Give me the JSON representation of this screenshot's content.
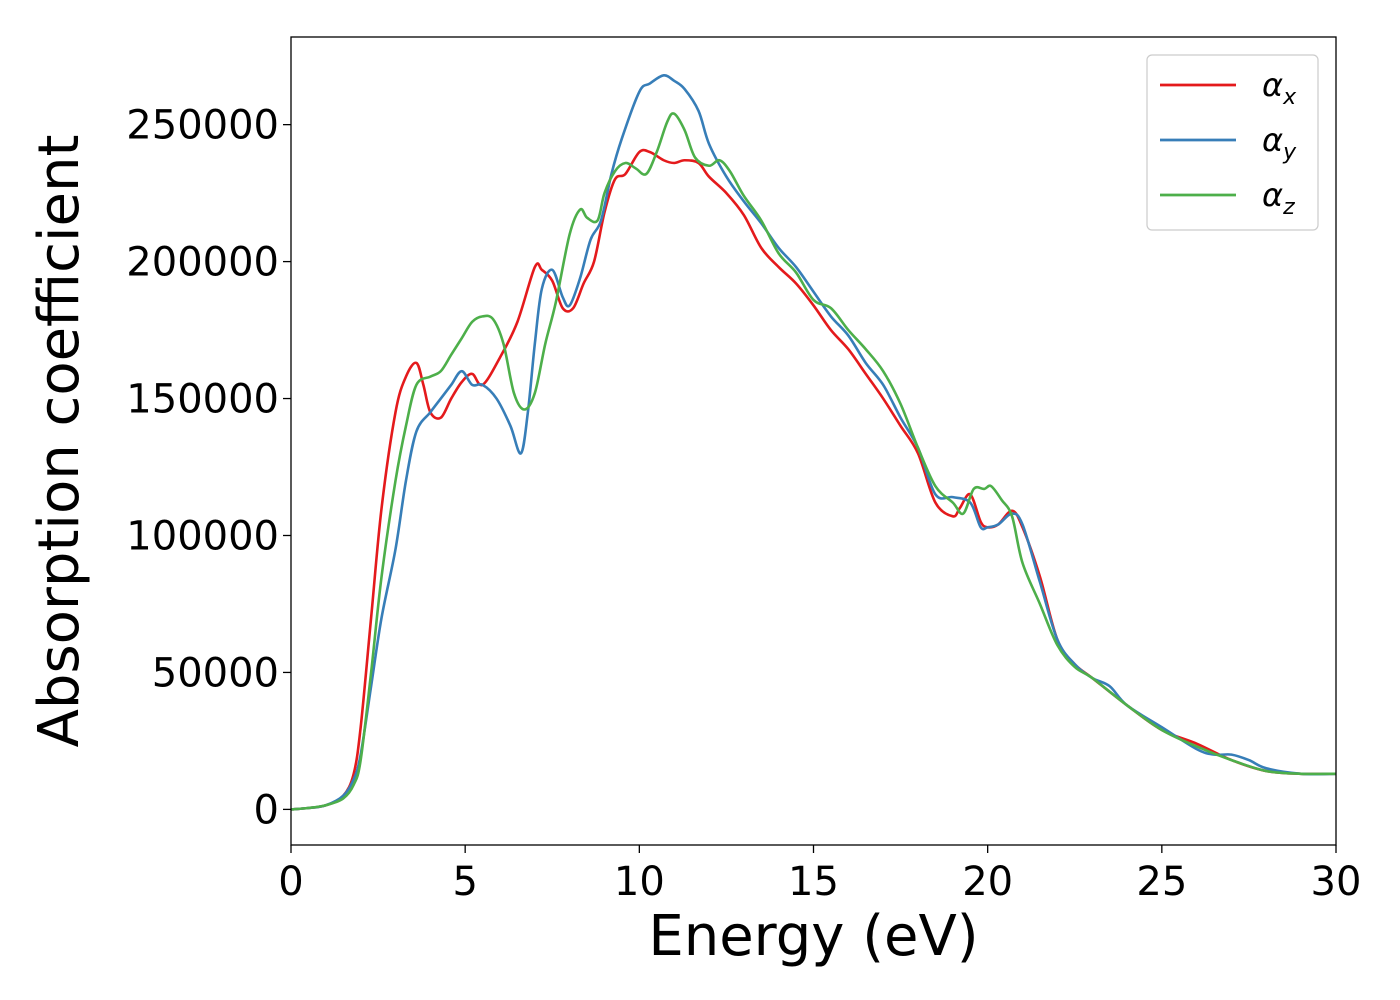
{
  "chart_data": {
    "type": "line",
    "xlabel": "Energy (eV)",
    "ylabel": "Absorption coefficient",
    "xlim": [
      0,
      30
    ],
    "ylim": [
      -13000,
      282000
    ],
    "x_ticks": [
      0,
      5,
      10,
      15,
      20,
      25,
      30
    ],
    "y_ticks": [
      0,
      50000,
      100000,
      150000,
      200000,
      250000
    ],
    "grid": false,
    "legend_position": "top-right",
    "series": [
      {
        "name": "α",
        "name_subscript": "x",
        "color": "#e41a1c",
        "x": [
          0,
          0.5,
          1.0,
          1.5,
          1.8,
          2.0,
          2.3,
          2.6,
          3.0,
          3.3,
          3.6,
          3.8,
          4.0,
          4.3,
          4.6,
          4.9,
          5.2,
          5.5,
          6.0,
          6.5,
          7.0,
          7.2,
          7.5,
          7.8,
          8.1,
          8.4,
          8.7,
          9.0,
          9.3,
          9.6,
          10.0,
          10.3,
          10.7,
          11.0,
          11.3,
          11.7,
          12.0,
          12.5,
          13.0,
          13.5,
          14.0,
          14.5,
          15.0,
          15.5,
          16.0,
          16.5,
          17.0,
          17.5,
          18.0,
          18.5,
          19.0,
          19.2,
          19.5,
          19.8,
          20.0,
          20.3,
          20.7,
          21.0,
          21.5,
          22.0,
          22.5,
          23.0,
          24.0,
          25.0,
          26.0,
          27.0,
          28.0,
          29.0,
          30.0
        ],
        "y": [
          0,
          500,
          1500,
          5000,
          13000,
          30000,
          70000,
          110000,
          145000,
          158000,
          163000,
          155000,
          145000,
          143000,
          150000,
          156000,
          159000,
          155000,
          165000,
          178000,
          198000,
          197000,
          193000,
          183000,
          183000,
          192000,
          200000,
          218000,
          230000,
          232000,
          240000,
          240000,
          237000,
          236000,
          237000,
          236000,
          231000,
          225000,
          217000,
          205000,
          198000,
          192000,
          184000,
          175000,
          168000,
          159000,
          150000,
          140000,
          130000,
          112000,
          107000,
          110000,
          115000,
          105000,
          103000,
          104000,
          109000,
          103000,
          85000,
          62000,
          53000,
          48000,
          38000,
          29000,
          24000,
          18000,
          14000,
          13000,
          13000
        ]
      },
      {
        "name": "α",
        "name_subscript": "y",
        "color": "#377eb8",
        "x": [
          0,
          0.5,
          1.0,
          1.5,
          1.8,
          2.0,
          2.3,
          2.6,
          3.0,
          3.3,
          3.6,
          4.0,
          4.3,
          4.6,
          4.9,
          5.2,
          5.5,
          5.9,
          6.3,
          6.6,
          6.8,
          7.0,
          7.2,
          7.5,
          7.8,
          8.0,
          8.3,
          8.6,
          8.9,
          9.2,
          9.5,
          10.0,
          10.3,
          10.7,
          11.0,
          11.3,
          11.7,
          12.0,
          12.5,
          13.0,
          13.5,
          14.0,
          14.5,
          15.0,
          15.5,
          16.0,
          16.5,
          17.0,
          17.5,
          18.0,
          18.5,
          19.0,
          19.5,
          19.8,
          20.0,
          20.3,
          20.7,
          21.0,
          21.5,
          22.0,
          22.5,
          23.0,
          23.5,
          24.0,
          25.0,
          26.0,
          26.5,
          27.0,
          27.5,
          28.0,
          29.0,
          30.0
        ],
        "y": [
          0,
          500,
          1500,
          5000,
          11000,
          20000,
          45000,
          70000,
          95000,
          120000,
          138000,
          145000,
          150000,
          155000,
          160000,
          155000,
          155000,
          150000,
          140000,
          130000,
          145000,
          170000,
          190000,
          197000,
          187000,
          184000,
          194000,
          208000,
          215000,
          232000,
          245000,
          262000,
          265000,
          268000,
          266000,
          263000,
          255000,
          243000,
          231000,
          222000,
          214000,
          205000,
          198000,
          189000,
          180000,
          173000,
          163000,
          155000,
          143000,
          132000,
          115000,
          114000,
          112000,
          103000,
          103000,
          104000,
          108000,
          104000,
          83000,
          62000,
          53000,
          48000,
          45000,
          38000,
          30000,
          22000,
          20000,
          20000,
          18000,
          15000,
          13000,
          13000
        ]
      },
      {
        "name": "α",
        "name_subscript": "z",
        "color": "#4daf4a",
        "x": [
          0,
          0.5,
          1.0,
          1.5,
          1.8,
          2.0,
          2.3,
          2.6,
          3.0,
          3.3,
          3.6,
          4.0,
          4.3,
          4.6,
          4.9,
          5.2,
          5.5,
          5.8,
          6.1,
          6.4,
          6.7,
          7.0,
          7.3,
          7.6,
          8.0,
          8.3,
          8.5,
          8.8,
          9.0,
          9.3,
          9.6,
          9.9,
          10.2,
          10.5,
          10.8,
          11.0,
          11.3,
          11.6,
          12.0,
          12.3,
          12.6,
          13.0,
          13.5,
          14.0,
          14.5,
          15.0,
          15.5,
          16.0,
          16.5,
          17.0,
          17.5,
          18.0,
          18.5,
          19.0,
          19.3,
          19.6,
          19.9,
          20.1,
          20.4,
          20.7,
          21.0,
          21.5,
          22.0,
          22.5,
          23.0,
          24.0,
          25.0,
          26.0,
          27.0,
          28.0,
          29.0,
          30.0
        ],
        "y": [
          0,
          500,
          1500,
          4000,
          9000,
          18000,
          50000,
          85000,
          120000,
          140000,
          155000,
          158000,
          160000,
          166000,
          172000,
          178000,
          180000,
          179000,
          170000,
          152000,
          146000,
          152000,
          170000,
          185000,
          210000,
          219000,
          216000,
          215000,
          225000,
          233000,
          236000,
          234000,
          232000,
          240000,
          251000,
          254000,
          248000,
          238000,
          235000,
          237000,
          233000,
          224000,
          215000,
          203000,
          196000,
          186000,
          183000,
          175000,
          168000,
          160000,
          148000,
          132000,
          118000,
          112000,
          108000,
          117000,
          117000,
          118000,
          113000,
          107000,
          90000,
          75000,
          60000,
          52000,
          48000,
          38000,
          29000,
          23000,
          18000,
          14000,
          13000,
          13000
        ]
      }
    ]
  }
}
